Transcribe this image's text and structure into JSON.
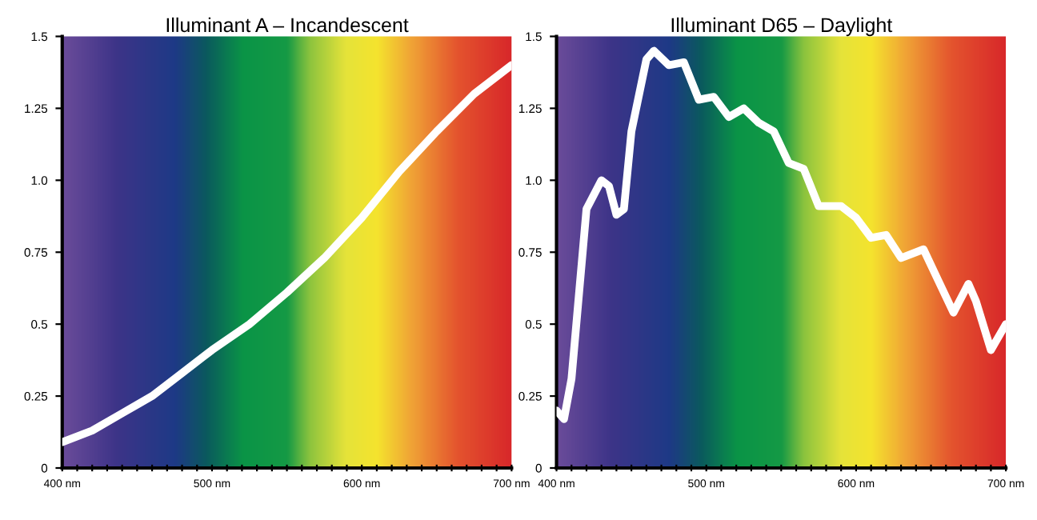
{
  "chart_data": [
    {
      "type": "line",
      "title": "Illuminant A – Incandescent",
      "x": [
        400,
        420,
        440,
        460,
        480,
        500,
        525,
        550,
        575,
        600,
        625,
        650,
        675,
        700
      ],
      "series": [
        {
          "color": "#ffffff",
          "values": [
            0.09,
            0.13,
            0.19,
            0.25,
            0.33,
            0.41,
            0.5,
            0.61,
            0.73,
            0.87,
            1.03,
            1.17,
            1.3,
            1.4
          ]
        }
      ],
      "xlim": [
        400,
        700
      ],
      "ylim": [
        0,
        1.5
      ],
      "xticks": [
        {
          "value": 400,
          "label": "400 nm"
        },
        {
          "value": 410,
          "label": null
        },
        {
          "value": 420,
          "label": null
        },
        {
          "value": 430,
          "label": null
        },
        {
          "value": 440,
          "label": null
        },
        {
          "value": 450,
          "label": null
        },
        {
          "value": 460,
          "label": null
        },
        {
          "value": 470,
          "label": null
        },
        {
          "value": 480,
          "label": null
        },
        {
          "value": 490,
          "label": null
        },
        {
          "value": 500,
          "label": "500 nm"
        },
        {
          "value": 510,
          "label": null
        },
        {
          "value": 520,
          "label": null
        },
        {
          "value": 530,
          "label": null
        },
        {
          "value": 540,
          "label": null
        },
        {
          "value": 550,
          "label": null
        },
        {
          "value": 560,
          "label": null
        },
        {
          "value": 570,
          "label": null
        },
        {
          "value": 580,
          "label": null
        },
        {
          "value": 590,
          "label": null
        },
        {
          "value": 600,
          "label": "600 nm"
        },
        {
          "value": 610,
          "label": null
        },
        {
          "value": 620,
          "label": null
        },
        {
          "value": 630,
          "label": null
        },
        {
          "value": 640,
          "label": null
        },
        {
          "value": 650,
          "label": null
        },
        {
          "value": 660,
          "label": null
        },
        {
          "value": 670,
          "label": null
        },
        {
          "value": 680,
          "label": null
        },
        {
          "value": 690,
          "label": null
        },
        {
          "value": 700,
          "label": "700 nm"
        }
      ],
      "yticks": [
        0,
        0.25,
        0.5,
        0.75,
        {
          "value": 1,
          "label": "1.0"
        },
        1.25,
        1.5
      ],
      "grid": false,
      "legend": false,
      "line_style": "solid",
      "marker": "none"
    },
    {
      "type": "line",
      "title": "Illuminant D65 – Daylight",
      "x": [
        400,
        405,
        410,
        420,
        430,
        435,
        440,
        445,
        450,
        460,
        465,
        475,
        485,
        495,
        505,
        515,
        525,
        535,
        545,
        555,
        565,
        575,
        590,
        600,
        610,
        620,
        630,
        645,
        655,
        665,
        675,
        680,
        690,
        700
      ],
      "series": [
        {
          "color": "#ffffff",
          "values": [
            0.2,
            0.17,
            0.31,
            0.9,
            1.0,
            0.98,
            0.88,
            0.9,
            1.17,
            1.42,
            1.45,
            1.4,
            1.41,
            1.28,
            1.29,
            1.22,
            1.25,
            1.2,
            1.17,
            1.06,
            1.04,
            0.91,
            0.91,
            0.87,
            0.8,
            0.81,
            0.73,
            0.76,
            0.65,
            0.54,
            0.64,
            0.58,
            0.41,
            0.5
          ]
        }
      ],
      "xlim": [
        400,
        700
      ],
      "ylim": [
        0,
        1.5
      ],
      "xticks": [
        {
          "value": 400,
          "label": "400 nm"
        },
        {
          "value": 410,
          "label": null
        },
        {
          "value": 420,
          "label": null
        },
        {
          "value": 430,
          "label": null
        },
        {
          "value": 440,
          "label": null
        },
        {
          "value": 450,
          "label": null
        },
        {
          "value": 460,
          "label": null
        },
        {
          "value": 470,
          "label": null
        },
        {
          "value": 480,
          "label": null
        },
        {
          "value": 490,
          "label": null
        },
        {
          "value": 500,
          "label": "500 nm"
        },
        {
          "value": 510,
          "label": null
        },
        {
          "value": 520,
          "label": null
        },
        {
          "value": 530,
          "label": null
        },
        {
          "value": 540,
          "label": null
        },
        {
          "value": 550,
          "label": null
        },
        {
          "value": 560,
          "label": null
        },
        {
          "value": 570,
          "label": null
        },
        {
          "value": 580,
          "label": null
        },
        {
          "value": 590,
          "label": null
        },
        {
          "value": 600,
          "label": "600 nm"
        },
        {
          "value": 610,
          "label": null
        },
        {
          "value": 620,
          "label": null
        },
        {
          "value": 630,
          "label": null
        },
        {
          "value": 640,
          "label": null
        },
        {
          "value": 650,
          "label": null
        },
        {
          "value": 660,
          "label": null
        },
        {
          "value": 670,
          "label": null
        },
        {
          "value": 680,
          "label": null
        },
        {
          "value": 690,
          "label": null
        },
        {
          "value": 700,
          "label": "700 nm"
        }
      ],
      "yticks": [
        0,
        0.25,
        0.5,
        0.75,
        {
          "value": 1,
          "label": "1.0"
        },
        1.25,
        1.5
      ],
      "grid": false,
      "legend": false,
      "line_style": "solid",
      "marker": "none"
    }
  ]
}
